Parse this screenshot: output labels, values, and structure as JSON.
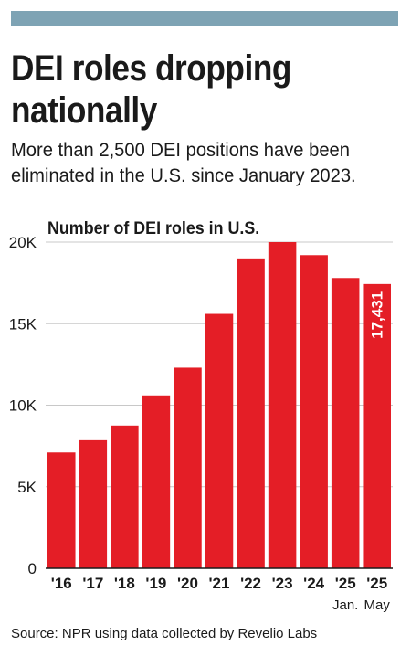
{
  "header": {
    "title_line1": "DEI roles dropping",
    "title_line2": "nationally",
    "subtitle_line1": "More than 2,500 DEI positions have been",
    "subtitle_line2": "eliminated in the U.S. since January 2023."
  },
  "source": "Source: NPR using data collected by Revelio Labs",
  "colors": {
    "bar": "#e41e26",
    "top_bar": "#7ea3b4",
    "grid": "#c8c8c8"
  },
  "chart_data": {
    "type": "bar",
    "title": "Number of DEI roles in U.S.",
    "categories": [
      "'16",
      "'17",
      "'18",
      "'19",
      "'20",
      "'21",
      "'22",
      "'23",
      "'24",
      "'25",
      "'25"
    ],
    "sublabels": [
      "",
      "",
      "",
      "",
      "",
      "",
      "",
      "",
      "",
      "Jan.",
      "May"
    ],
    "values": [
      7100,
      7850,
      8750,
      10600,
      12300,
      15600,
      19000,
      20000,
      19200,
      17800,
      17431
    ],
    "annotations": [
      {
        "index": 10,
        "text": "17,431"
      }
    ],
    "yticks": [
      0,
      5000,
      10000,
      15000,
      20000
    ],
    "ytick_labels": [
      "0",
      "5K",
      "10K",
      "15K",
      "20K"
    ],
    "ylim": [
      0,
      20000
    ],
    "grid": true,
    "legend": "none"
  }
}
